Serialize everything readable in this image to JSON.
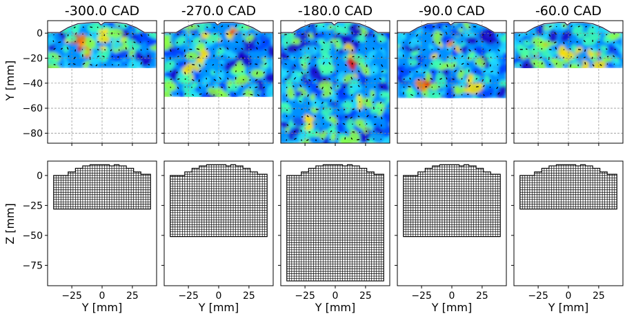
{
  "figure": {
    "titles": [
      "-300.0 CAD",
      "-270.0 CAD",
      "-180.0 CAD",
      "-90.0 CAD",
      "-60.0 CAD"
    ],
    "row1_ylabel": "Y [mm]",
    "row2_ylabel": "Z [mm]",
    "xlabel": "Y [mm]"
  },
  "chart_data": [
    {
      "type": "heatmap",
      "row": "velocity-field",
      "ylabel": "Y [mm]",
      "xlim": [
        -45,
        45
      ],
      "ylim": [
        -88,
        10
      ],
      "yticks": [
        0,
        -20,
        -40,
        -60,
        -80
      ],
      "xticks": [
        -25,
        0,
        25
      ],
      "grid": true,
      "colormap": "rainbow",
      "panels": [
        {
          "title": "-300.0 CAD",
          "field_bottom": -28,
          "hotspots": [
            [
              -15,
              -8,
              0.9
            ],
            [
              5,
              -3,
              0.8
            ],
            [
              -25,
              -12,
              0.7
            ]
          ]
        },
        {
          "title": "-270.0 CAD",
          "field_bottom": -51,
          "hotspots": [
            [
              -10,
              -10,
              0.8
            ],
            [
              10,
              0,
              0.7
            ],
            [
              -25,
              -25,
              0.6
            ]
          ]
        },
        {
          "title": "-180.0 CAD",
          "field_bottom": -88,
          "hotspots": [
            [
              15,
              -25,
              0.8
            ],
            [
              -20,
              -70,
              0.6
            ],
            [
              25,
              -50,
              0.6
            ]
          ]
        },
        {
          "title": "-90.0 CAD",
          "field_bottom": -52,
          "hotspots": [
            [
              -20,
              -42,
              1.0
            ],
            [
              -5,
              -15,
              0.8
            ],
            [
              20,
              -38,
              0.7
            ]
          ]
        },
        {
          "title": "-60.0 CAD",
          "field_bottom": -28,
          "hotspots": [
            [
              0,
              -24,
              1.0
            ],
            [
              -25,
              -10,
              0.8
            ],
            [
              20,
              -22,
              0.8
            ]
          ]
        }
      ]
    },
    {
      "type": "scatter",
      "row": "computational-mesh",
      "ylabel": "Z [mm]",
      "xlabel": "Y [mm]",
      "xlim": [
        -45,
        45
      ],
      "ylim": [
        -92,
        12
      ],
      "yticks": [
        0,
        -25,
        -50,
        -75
      ],
      "xticks": [
        -25,
        0,
        25
      ],
      "grid": false,
      "panels": [
        {
          "title": "-300.0 CAD",
          "mesh_bottom": -28
        },
        {
          "title": "-270.0 CAD",
          "mesh_bottom": -51
        },
        {
          "title": "-180.0 CAD",
          "mesh_bottom": -88
        },
        {
          "title": "-90.0 CAD",
          "mesh_bottom": -51
        },
        {
          "title": "-60.0 CAD",
          "mesh_bottom": -28
        }
      ]
    }
  ],
  "colors": {
    "jet": [
      "#1a00c8",
      "#0040ff",
      "#0090ff",
      "#20d8ff",
      "#40ffb0",
      "#90ff40",
      "#ffe000",
      "#ff8000",
      "#e01000"
    ],
    "grid": "#888888",
    "mesh": "#000000",
    "arrow": "#000000"
  }
}
